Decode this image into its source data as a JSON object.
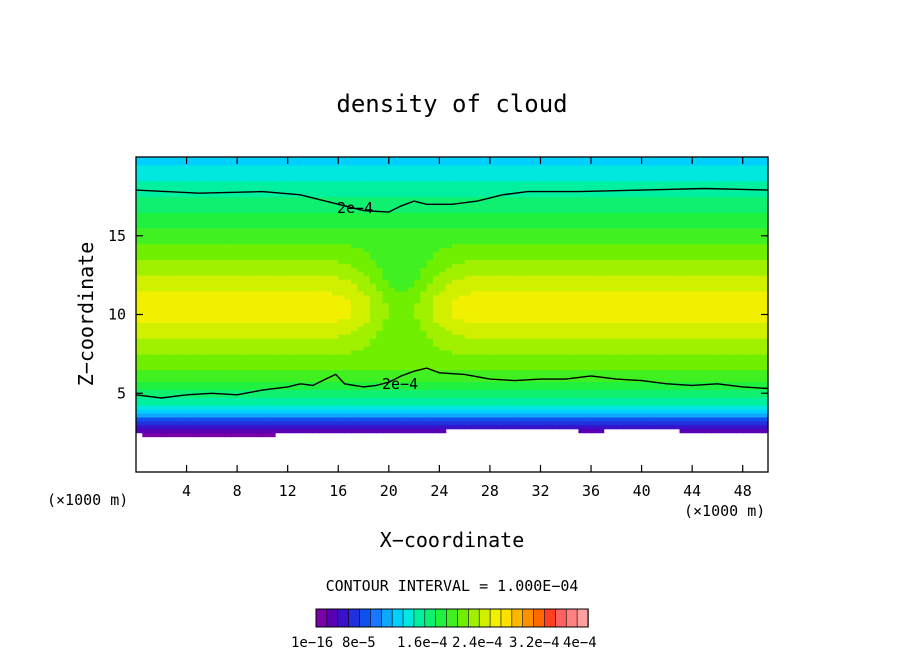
{
  "chart_data": {
    "type": "heatmap",
    "title": "density of cloud",
    "xlabel": "X−coordinate",
    "ylabel": "Z−coordinate",
    "x_unit_left": "(×1000 m)",
    "x_unit_right": "(×1000 m)",
    "xlim": [
      0,
      50
    ],
    "ylim": [
      0,
      20
    ],
    "x_ticks": [
      4,
      8,
      12,
      16,
      20,
      24,
      28,
      32,
      36,
      40,
      44,
      48
    ],
    "y_ticks": [
      5,
      10,
      15
    ],
    "contour_interval_text": "CONTOUR INTERVAL = 1.000E−04",
    "contour_labels": [
      "2e−4",
      "2e−4"
    ],
    "contours": [
      {
        "label": "2e−4",
        "level": 0.0002,
        "points": [
          [
            0,
            17.9
          ],
          [
            5,
            17.7
          ],
          [
            10,
            17.8
          ],
          [
            13,
            17.6
          ],
          [
            15.5,
            17.1
          ],
          [
            18,
            16.6
          ],
          [
            20,
            16.5
          ],
          [
            21,
            16.9
          ],
          [
            22,
            17.2
          ],
          [
            23,
            17.0
          ],
          [
            25,
            17.0
          ],
          [
            27,
            17.2
          ],
          [
            29,
            17.6
          ],
          [
            31,
            17.8
          ],
          [
            35,
            17.8
          ],
          [
            40,
            17.9
          ],
          [
            45,
            18.0
          ],
          [
            50,
            17.9
          ]
        ]
      },
      {
        "label": "2e−4",
        "level": 0.0002,
        "points": [
          [
            0,
            4.9
          ],
          [
            2,
            4.7
          ],
          [
            4,
            4.9
          ],
          [
            6,
            5.0
          ],
          [
            8,
            4.9
          ],
          [
            10,
            5.2
          ],
          [
            12,
            5.4
          ],
          [
            13,
            5.6
          ],
          [
            14,
            5.5
          ],
          [
            15,
            5.9
          ],
          [
            15.8,
            6.2
          ],
          [
            16.5,
            5.6
          ],
          [
            18,
            5.4
          ],
          [
            19,
            5.5
          ],
          [
            20,
            5.7
          ],
          [
            21,
            6.1
          ],
          [
            22,
            6.4
          ],
          [
            23,
            6.6
          ],
          [
            24,
            6.3
          ],
          [
            26,
            6.2
          ],
          [
            28,
            5.9
          ],
          [
            30,
            5.8
          ],
          [
            32,
            5.9
          ],
          [
            34,
            5.9
          ],
          [
            36,
            6.1
          ],
          [
            38,
            5.9
          ],
          [
            40,
            5.8
          ],
          [
            42,
            5.6
          ],
          [
            44,
            5.5
          ],
          [
            46,
            5.6
          ],
          [
            48,
            5.4
          ],
          [
            50,
            5.3
          ]
        ]
      }
    ],
    "colorbar": {
      "tick_labels": [
        "1e−16",
        "8e−5",
        "1.6e−4",
        "2.4e−4",
        "3.2e−4",
        "4e−4"
      ],
      "colors": [
        "#7a00a8",
        "#5a00b4",
        "#3a10c8",
        "#2030dc",
        "#1050ee",
        "#1878ff",
        "#10a8ff",
        "#00d0ff",
        "#00e8e0",
        "#00f0a0",
        "#10f070",
        "#20f040",
        "#40f020",
        "#70f000",
        "#a0f000",
        "#d0f000",
        "#f0f000",
        "#ffe000",
        "#ffb800",
        "#ff9000",
        "#ff6800",
        "#ff4020",
        "#ff6060",
        "#ff8080",
        "#ffa0a0"
      ]
    },
    "field": {
      "base_height": [
        [
          0,
          2.4
        ],
        [
          4,
          2.2
        ],
        [
          8,
          2.3
        ],
        [
          12,
          2.4
        ],
        [
          16,
          2.5
        ],
        [
          20,
          2.5
        ],
        [
          24,
          2.6
        ],
        [
          28,
          2.8
        ],
        [
          32,
          2.7
        ],
        [
          36,
          2.6
        ],
        [
          40,
          2.7
        ],
        [
          44,
          2.6
        ],
        [
          48,
          2.5
        ],
        [
          50,
          2.6
        ]
      ],
      "profile_z": [
        2.5,
        3,
        3.5,
        4,
        5,
        6,
        7,
        8,
        9,
        10,
        11,
        12,
        13,
        14,
        15,
        16,
        17,
        18,
        19,
        20
      ],
      "profile_level": [
        0,
        2,
        5,
        8,
        10,
        12,
        13,
        14,
        15,
        16,
        16,
        15,
        14,
        13,
        12,
        11,
        10,
        9,
        8,
        7
      ]
    }
  }
}
